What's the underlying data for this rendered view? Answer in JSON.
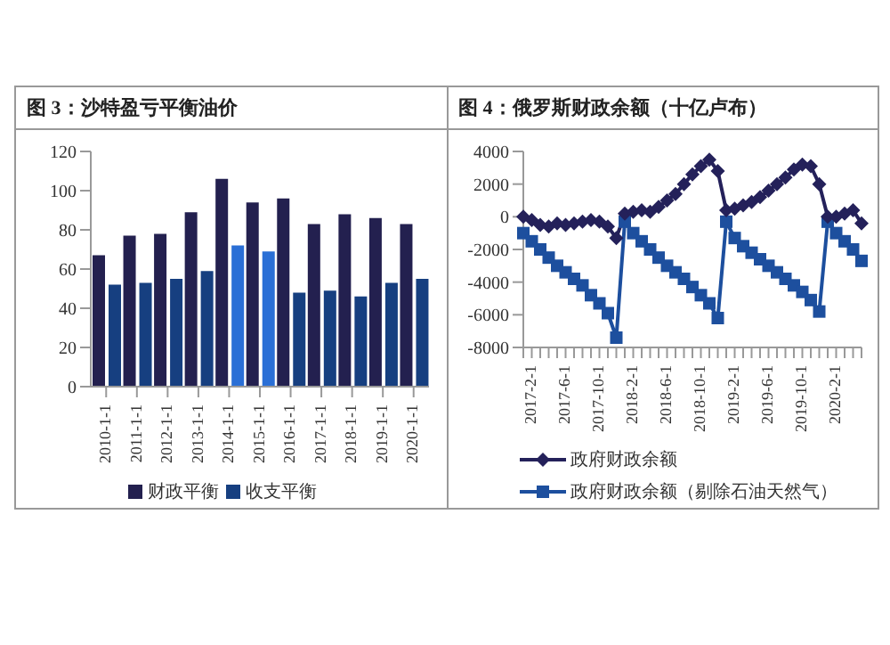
{
  "chart_data": [
    {
      "type": "bar",
      "title": "图 3：沙特盈亏平衡油价",
      "categories": [
        "2010-1-1",
        "2011-1-1",
        "2012-1-1",
        "2013-1-1",
        "2014-1-1",
        "2015-1-1",
        "2016-1-1",
        "2017-1-1",
        "2018-1-1",
        "2019-1-1",
        "2020-1-1"
      ],
      "series": [
        {
          "name": "财政平衡",
          "color": "#23204f",
          "values": [
            67,
            77,
            78,
            89,
            106,
            94,
            96,
            83,
            88,
            86,
            83
          ]
        },
        {
          "name": "收支平衡",
          "color": "#163f80",
          "colors": [
            "#163f80",
            "#163f80",
            "#163f80",
            "#163f80",
            "#2a6fd6",
            "#2a6fd6",
            "#163f80",
            "#163f80",
            "#163f80",
            "#163f80",
            "#163f80"
          ],
          "values": [
            52,
            53,
            55,
            59,
            72,
            69,
            48,
            49,
            46,
            53,
            55
          ]
        }
      ],
      "ylim": [
        0,
        120
      ],
      "yticks": [
        0,
        20,
        40,
        60,
        80,
        100,
        120
      ],
      "legend": "bottom"
    },
    {
      "type": "line",
      "title": "图 4：俄罗斯财政余额（十亿卢布）",
      "categories": [
        null,
        "2017-2-1",
        null,
        null,
        null,
        "2017-6-1",
        null,
        null,
        null,
        "2017-10-1",
        null,
        null,
        null,
        "2018-2-1",
        null,
        null,
        null,
        "2018-6-1",
        null,
        null,
        null,
        "2018-10-1",
        null,
        null,
        null,
        "2019-2-1",
        null,
        null,
        null,
        "2019-6-1",
        null,
        null,
        null,
        "2019-10-1",
        null,
        null,
        null,
        "2020-2-1",
        null,
        null,
        null
      ],
      "series": [
        {
          "name": "政府财政余额",
          "color": "#24215a",
          "marker": "diamond",
          "values": [
            0,
            -200,
            -500,
            -600,
            -400,
            -500,
            -400,
            -300,
            -200,
            -300,
            -600,
            -1300,
            200,
            300,
            400,
            300,
            600,
            1000,
            1400,
            2000,
            2600,
            3100,
            3500,
            2800,
            400,
            500,
            700,
            900,
            1200,
            1600,
            2000,
            2400,
            2900,
            3200,
            3100,
            2000,
            0,
            0,
            200,
            400,
            -400
          ]
        },
        {
          "name": "政府财政余额（剔除石油天然气）",
          "color": "#1d4f9e",
          "marker": "square",
          "values": [
            -1000,
            -1500,
            -2000,
            -2500,
            -3000,
            -3400,
            -3800,
            -4200,
            -4800,
            -5300,
            -5900,
            -7400,
            -300,
            -1000,
            -1500,
            -2000,
            -2500,
            -3000,
            -3400,
            -3800,
            -4300,
            -4800,
            -5300,
            -6200,
            -300,
            -1300,
            -1800,
            -2200,
            -2600,
            -3000,
            -3400,
            -3800,
            -4200,
            -4600,
            -5100,
            -5800,
            -300,
            -1000,
            -1500,
            -2000,
            -2700
          ]
        }
      ],
      "ylim": [
        -8000,
        4000
      ],
      "yticks": [
        -8000,
        -6000,
        -4000,
        -2000,
        0,
        2000,
        4000
      ],
      "legend": "bottom"
    }
  ]
}
